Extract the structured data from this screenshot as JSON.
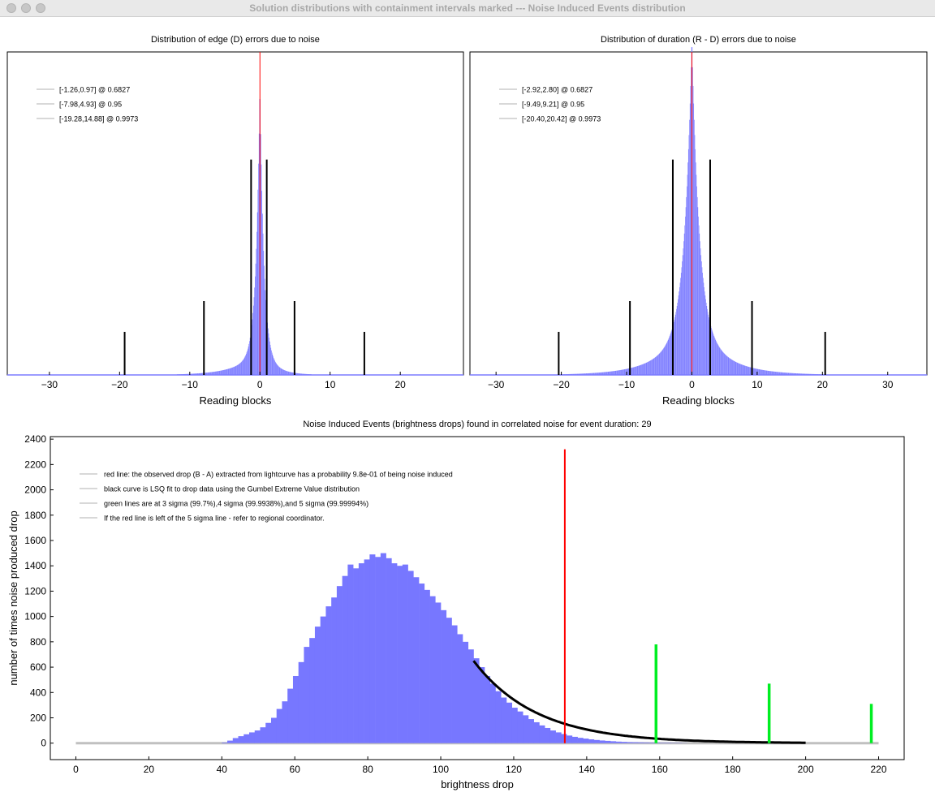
{
  "window": {
    "title": "Solution distributions with containment intervals marked --- Noise Induced Events distribution"
  },
  "chart_data": [
    {
      "type": "bar",
      "title": "Distribution of edge (D) errors due to noise",
      "xlabel": "Reading blocks",
      "ylabel": "",
      "xlim": [
        -36,
        29
      ],
      "ylim": [
        0,
        1.05
      ],
      "x_ticks": [
        -30,
        -20,
        -10,
        0,
        10,
        20
      ],
      "grid": false,
      "legend_position": "top-left",
      "legend": [
        "[-1.26,0.97] @ 0.6827",
        "[-7.98,4.93] @ 0.95",
        "[-19.28,14.88] @ 0.9973"
      ],
      "intervals": [
        {
          "low": -1.26,
          "high": 0.97,
          "confidence": 0.6827,
          "marker_height": 0.7
        },
        {
          "low": -7.98,
          "high": 4.93,
          "confidence": 0.95,
          "marker_height": 0.24
        },
        {
          "low": -19.28,
          "high": 14.88,
          "confidence": 0.9973,
          "marker_height": 0.14
        }
      ],
      "observed_line": 0,
      "histogram_shape": {
        "peak_x": 0,
        "peak_height": 0.88,
        "core_width": 0.55,
        "tail_height": 0.08,
        "tail_width_left": 3.2,
        "tail_width_right": 2.0
      },
      "colors": {
        "bars": "#7c7cff",
        "intervals": "#000000",
        "observed": "#ff0000",
        "legend_line": "#cccccc"
      }
    },
    {
      "type": "bar",
      "title": "Distribution of duration (R - D) errors due to noise",
      "xlabel": "Reading blocks",
      "ylabel": "",
      "xlim": [
        -34,
        36
      ],
      "ylim": [
        0,
        1.05
      ],
      "x_ticks": [
        -30,
        -20,
        -10,
        0,
        10,
        20,
        30
      ],
      "grid": false,
      "legend_position": "top-left",
      "legend": [
        "[-2.92,2.80] @ 0.6827",
        "[-9.49,9.21] @ 0.95",
        "[-20.40,20.42] @ 0.9973"
      ],
      "intervals": [
        {
          "low": -2.92,
          "high": 2.8,
          "confidence": 0.6827,
          "marker_height": 0.7
        },
        {
          "low": -9.49,
          "high": 9.21,
          "confidence": 0.95,
          "marker_height": 0.24
        },
        {
          "low": -20.4,
          "high": 20.42,
          "confidence": 0.9973,
          "marker_height": 0.14
        }
      ],
      "observed_line": 0,
      "histogram_shape": {
        "peak_x": 0,
        "peak_height": 0.92,
        "core_width": 1.1,
        "tail_height": 0.18,
        "tail_width_left": 4.5,
        "tail_width_right": 4.5
      },
      "colors": {
        "bars": "#7c7cff",
        "intervals": "#000000",
        "observed": "#ff0000",
        "legend_line": "#cccccc"
      }
    },
    {
      "type": "bar",
      "title": "Noise Induced Events (brightness drops) found in correlated noise for event duration: 29",
      "xlabel": "brightness drop",
      "ylabel": "number of times noise produced drop",
      "xlim": [
        -7,
        227
      ],
      "ylim": [
        -130,
        2420
      ],
      "x_ticks": [
        0,
        20,
        40,
        60,
        80,
        100,
        120,
        140,
        160,
        180,
        200,
        220
      ],
      "y_ticks": [
        0,
        200,
        400,
        600,
        800,
        1000,
        1200,
        1400,
        1600,
        1800,
        2000,
        2200,
        2400
      ],
      "grid": false,
      "legend_position": "top-left",
      "legend": [
        "red line: the observed drop (B - A) extracted from lightcurve has a probability 9.8e-01 of being noise induced",
        "black curve is LSQ fit to drop data using the Gumbel Extreme Value distribution",
        "green lines are at 3 sigma (99.7%),4 sigma (99.9938%),and 5 sigma (99.99994%)",
        "If the red line is left of the 5 sigma line - refer to regional coordinator."
      ],
      "bins": {
        "start": 40,
        "width": 1.5,
        "counts": [
          5,
          20,
          40,
          55,
          70,
          85,
          100,
          125,
          160,
          200,
          270,
          330,
          430,
          530,
          640,
          760,
          830,
          920,
          1000,
          1080,
          1150,
          1240,
          1320,
          1410,
          1380,
          1420,
          1450,
          1490,
          1470,
          1500,
          1460,
          1420,
          1400,
          1410,
          1360,
          1310,
          1260,
          1210,
          1160,
          1110,
          1050,
          990,
          930,
          860,
          800,
          740,
          670,
          600,
          530,
          470,
          410,
          360,
          320,
          280,
          250,
          220,
          190,
          165,
          140,
          120,
          100,
          85,
          72,
          60,
          50,
          42,
          36,
          30,
          25,
          21,
          18,
          15,
          12,
          10,
          8,
          7,
          6,
          5,
          4,
          4,
          3,
          3,
          2,
          2,
          1
        ]
      },
      "fit_curve": {
        "x_start": 109,
        "x_end": 200,
        "y_start": 650,
        "decay": 0.058
      },
      "observed_drop": {
        "x": 134,
        "height": 2320
      },
      "sigma_lines": [
        {
          "label": "3 sigma",
          "x": 159,
          "height": 780
        },
        {
          "label": "4 sigma",
          "x": 190,
          "height": 470
        },
        {
          "label": "5 sigma",
          "x": 218,
          "height": 310
        }
      ],
      "baseline_range": [
        0,
        220
      ],
      "colors": {
        "bars": "#7777ff",
        "fit": "#000000",
        "observed": "#ff0000",
        "sigma": "#00ee22",
        "baseline": "#c0c0c0",
        "legend_line": "#cccccc"
      }
    }
  ]
}
